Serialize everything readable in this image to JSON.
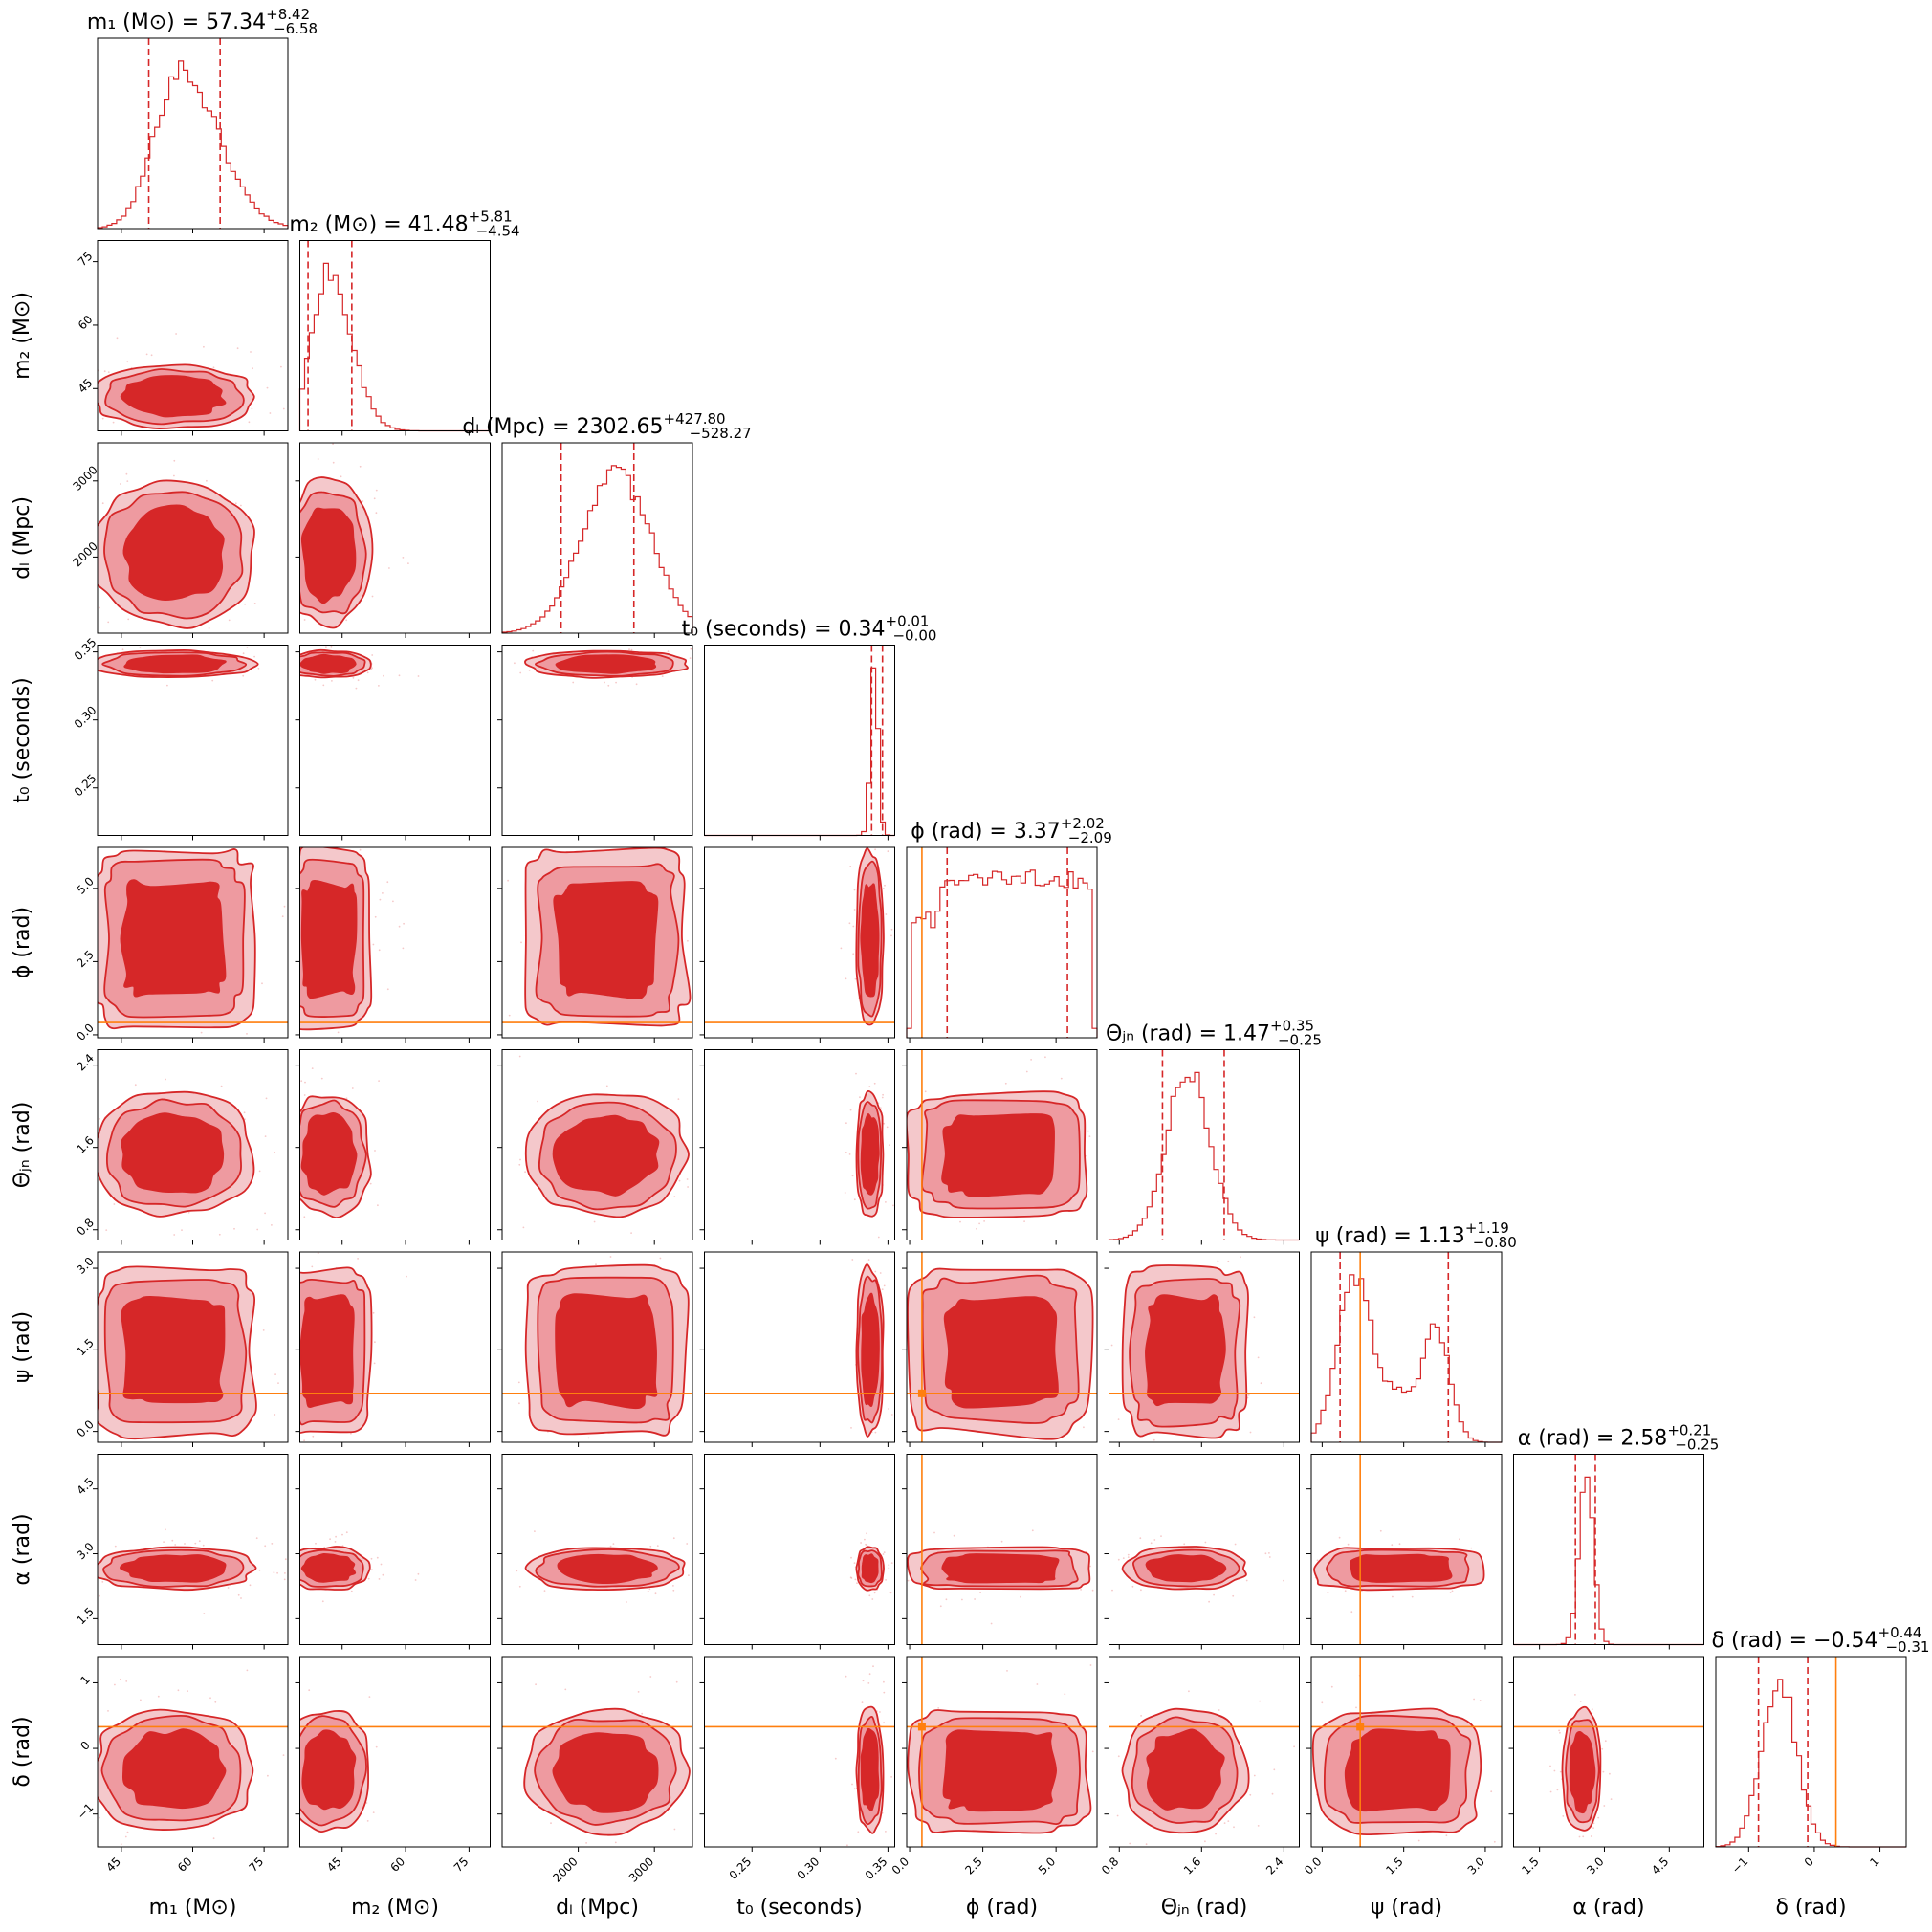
{
  "chart_data": {
    "type": "corner",
    "parameters": [
      {
        "label": "m₁ (M⊙)",
        "title": "m₁ (M⊙) = 57.34",
        "median": 57.34,
        "plus": "+8.42",
        "minus": "−6.58",
        "range": [
          40,
          80
        ],
        "ticks": [
          45,
          60,
          75
        ],
        "tick_labels": [
          "45",
          "60",
          "75"
        ],
        "quantiles": [
          50.76,
          65.76
        ],
        "truth": null
      },
      {
        "label": "m₂ (M⊙)",
        "title": "m₂ (M⊙) = 41.48",
        "median": 41.48,
        "plus": "+5.81",
        "minus": "−4.54",
        "range": [
          35,
          80
        ],
        "ticks": [
          45,
          60,
          75
        ],
        "tick_labels": [
          "45",
          "60",
          "75"
        ],
        "quantiles": [
          36.94,
          47.29
        ],
        "truth": null
      },
      {
        "label": "dₗ (Mpc)",
        "title": "dₗ (Mpc) = 2302.65",
        "median": 2302.65,
        "plus": "+427.80",
        "minus": "−528.27",
        "range": [
          1000,
          3500
        ],
        "ticks": [
          2000,
          3000
        ],
        "tick_labels": [
          "2000",
          "3000"
        ],
        "quantiles": [
          1774.38,
          2730.45
        ],
        "truth": null
      },
      {
        "label": "t₀ (seconds)",
        "title": "t₀ (seconds) = 0.34",
        "median": 0.34,
        "plus": "+0.01",
        "minus": "−0.00",
        "range": [
          0.215,
          0.355
        ],
        "ticks": [
          0.25,
          0.3,
          0.35
        ],
        "tick_labels": [
          "0.25",
          "0.30",
          "0.35"
        ],
        "quantiles": [
          0.338,
          0.346
        ],
        "truth": null
      },
      {
        "label": "ϕ (rad)",
        "title": "ϕ (rad) = 3.37",
        "median": 3.37,
        "plus": "+2.02",
        "minus": "−2.09",
        "range": [
          -0.1,
          6.4
        ],
        "ticks": [
          0.0,
          2.5,
          5.0
        ],
        "tick_labels": [
          "0.0",
          "2.5",
          "5.0"
        ],
        "quantiles": [
          1.28,
          5.39
        ],
        "truth": 0.42
      },
      {
        "label": "Θⱼₙ (rad)",
        "title": "Θⱼₙ (rad) = 1.47",
        "median": 1.47,
        "plus": "+0.35",
        "minus": "−0.25",
        "range": [
          0.7,
          2.55
        ],
        "ticks": [
          0.8,
          1.6,
          2.4
        ],
        "tick_labels": [
          "0.8",
          "1.6",
          "2.4"
        ],
        "quantiles": [
          1.22,
          1.82
        ],
        "truth": null
      },
      {
        "label": "ψ (rad)",
        "title": "ψ (rad) = 1.13",
        "median": 1.13,
        "plus": "+1.19",
        "minus": "−0.80",
        "range": [
          -0.2,
          3.3
        ],
        "ticks": [
          0.0,
          1.5,
          3.0
        ],
        "tick_labels": [
          "0.0",
          "1.5",
          "3.0"
        ],
        "quantiles": [
          0.33,
          2.32
        ],
        "truth": 0.7
      },
      {
        "label": "α (rad)",
        "title": "α (rad) = 2.58",
        "median": 2.58,
        "plus": "+0.21",
        "minus": "−0.25",
        "range": [
          0.9,
          5.3
        ],
        "ticks": [
          1.5,
          3.0,
          4.5
        ],
        "tick_labels": [
          "1.5",
          "3.0",
          "4.5"
        ],
        "quantiles": [
          2.33,
          2.79
        ],
        "truth": null
      },
      {
        "label": "δ (rad)",
        "title": "δ (rad) = −0.54",
        "median": -0.54,
        "plus": "+0.44",
        "minus": "−0.31",
        "range": [
          -1.5,
          1.4
        ],
        "ticks": [
          -1,
          0,
          1
        ],
        "tick_labels": [
          "−1",
          "0",
          "1"
        ],
        "quantiles": [
          -0.85,
          -0.1
        ],
        "truth": 0.33
      }
    ],
    "colors": {
      "posterior": "#d62728",
      "posterior_light": "#ee9aa0",
      "truth": "#ff7f0e"
    }
  }
}
